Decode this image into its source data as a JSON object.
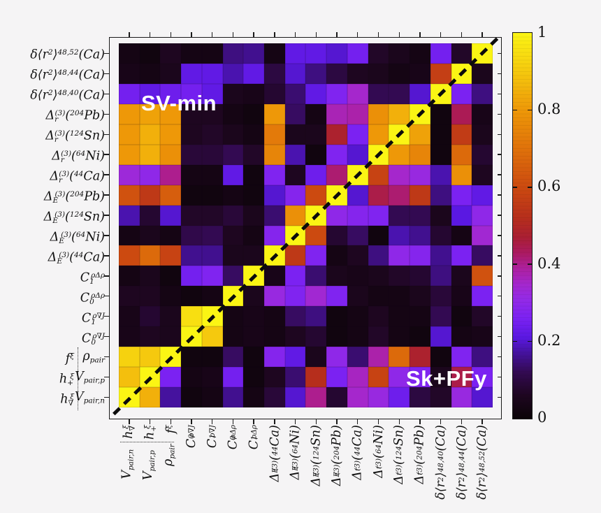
{
  "figure": {
    "background": "#f5f4f5",
    "annotations": {
      "upper_left": "SV-min",
      "lower_right": "Sk+PFy"
    },
    "annotation_color": "#ffffff"
  },
  "chart_data": {
    "type": "heatmap",
    "upper_triangle_label": "SV-min",
    "lower_triangle_label": "Sk+PFy",
    "value_range": [
      0,
      1
    ],
    "diagonal_line": "dashed",
    "row_labels": [
      {
        "label": "δ⟨r^{2}⟩^{48,52}(Ca)"
      },
      {
        "label": "δ⟨r^{2}⟩^{48,44}(Ca)"
      },
      {
        "label": "δ⟨r^{2}⟩^{48,40}(Ca)"
      },
      {
        "label": "Δ_{r}^{(3)}(^{204}Pb)"
      },
      {
        "label": "Δ_{r}^{(3)}(^{124}Sn)"
      },
      {
        "label": "Δ_{r}^{(3)}(^{64}Ni)"
      },
      {
        "label": "Δ_{r}^{(3)}(^{44}Ca)"
      },
      {
        "label": "Δ_{E}^{(3)}(^{204}Pb)"
      },
      {
        "label": "Δ_{E}^{(3)}(^{124}Sn)"
      },
      {
        "label": "Δ_{E}^{(3)}(^{64}Ni)"
      },
      {
        "label": "Δ_{E}^{(3)}(^{44}Ca)"
      },
      {
        "label": "C_{1}^{ρΔρ}"
      },
      {
        "label": "C_{0}^{ρΔρ}"
      },
      {
        "label": "C_{1}^{ρ∇J}"
      },
      {
        "label": "C_{0}^{ρ∇J}"
      },
      {
        "label": "f^{ξ}",
        "label2": "ρ_{pair}"
      },
      {
        "label": "h_{+}^{ξ}",
        "label2": "V_{pair,p}"
      },
      {
        "label": "h_{∇}^{ξ}",
        "label2": "V_{pair,n}"
      }
    ],
    "col_labels": [
      {
        "label": "h_{∇}^{ξ}",
        "label2": "V_{pair,n}"
      },
      {
        "label": "h_{+}^{ξ}",
        "label2": "V_{pair,p}"
      },
      {
        "label": "f^{ξ}",
        "label2": "ρ_{pair}"
      },
      {
        "label": "C_{0}^{ρ∇J}"
      },
      {
        "label": "C_{1}^{ρ∇J}"
      },
      {
        "label": "C_{0}^{ρΔρ}"
      },
      {
        "label": "C_{1}^{ρΔρ}"
      },
      {
        "label": "Δ_{E}^{(3)}(^{44}Ca)"
      },
      {
        "label": "Δ_{E}^{(3)}(^{64}Ni)"
      },
      {
        "label": "Δ_{E}^{(3)}(^{124}Sn)"
      },
      {
        "label": "Δ_{E}^{(3)}(^{204}Pb)"
      },
      {
        "label": "Δ_{r}^{(3)}(^{44}Ca)"
      },
      {
        "label": "Δ_{r}^{(3)}(^{64}Ni)"
      },
      {
        "label": "Δ_{r}^{(3)}(^{124}Sn)"
      },
      {
        "label": "Δ_{r}^{(3)}(^{204}Pb)"
      },
      {
        "label": "δ⟨r^{2}⟩^{48,40}(Ca)"
      },
      {
        "label": "δ⟨r^{2}⟩^{48,44}(Ca)"
      },
      {
        "label": "δ⟨r^{2}⟩^{48,52}(Ca)"
      }
    ],
    "matrix": [
      [
        0.03,
        0.02,
        0.06,
        0.03,
        0.03,
        0.15,
        0.16,
        0.03,
        0.22,
        0.22,
        0.2,
        0.25,
        0.07,
        0.05,
        0.03,
        0.25,
        0.07,
        1.0
      ],
      [
        0.04,
        0.03,
        0.05,
        0.22,
        0.22,
        0.18,
        0.22,
        0.1,
        0.2,
        0.15,
        0.1,
        0.06,
        0.05,
        0.03,
        0.04,
        0.57,
        1.0,
        0.05
      ],
      [
        0.25,
        0.22,
        0.24,
        0.25,
        0.22,
        0.05,
        0.04,
        0.08,
        0.14,
        0.22,
        0.27,
        0.35,
        0.12,
        0.12,
        0.2,
        1.0,
        0.26,
        0.15
      ],
      [
        0.8,
        0.82,
        0.8,
        0.06,
        0.06,
        0.03,
        0.02,
        0.8,
        0.13,
        0.03,
        0.37,
        0.38,
        0.78,
        0.85,
        1.0,
        0.02,
        0.44,
        0.04
      ],
      [
        0.8,
        0.85,
        0.8,
        0.06,
        0.07,
        0.05,
        0.03,
        0.72,
        0.05,
        0.05,
        0.48,
        0.26,
        0.8,
        1.0,
        0.82,
        0.02,
        0.56,
        0.05
      ],
      [
        0.8,
        0.85,
        0.78,
        0.09,
        0.09,
        0.12,
        0.07,
        0.75,
        0.18,
        0.02,
        0.27,
        0.2,
        1.0,
        0.8,
        0.75,
        0.02,
        0.68,
        0.08
      ],
      [
        0.33,
        0.3,
        0.4,
        0.03,
        0.03,
        0.22,
        0.02,
        0.27,
        0.06,
        0.24,
        0.42,
        1.0,
        0.58,
        0.35,
        0.32,
        0.18,
        0.78,
        0.06
      ],
      [
        0.62,
        0.55,
        0.65,
        0.02,
        0.02,
        0.03,
        0.02,
        0.2,
        0.28,
        0.6,
        1.0,
        0.2,
        0.45,
        0.42,
        0.55,
        0.15,
        0.26,
        0.22
      ],
      [
        0.18,
        0.08,
        0.2,
        0.07,
        0.07,
        0.09,
        0.05,
        0.14,
        0.78,
        1.0,
        0.3,
        0.28,
        0.27,
        0.12,
        0.12,
        0.05,
        0.21,
        0.3
      ],
      [
        0.03,
        0.05,
        0.03,
        0.11,
        0.12,
        0.06,
        0.03,
        0.28,
        1.0,
        0.6,
        0.08,
        0.13,
        0.02,
        0.18,
        0.16,
        0.08,
        0.03,
        0.34
      ],
      [
        0.6,
        0.68,
        0.58,
        0.16,
        0.16,
        0.05,
        0.05,
        1.0,
        0.55,
        0.27,
        0.03,
        0.06,
        0.15,
        0.3,
        0.28,
        0.16,
        0.26,
        0.13
      ],
      [
        0.03,
        0.05,
        0.02,
        0.25,
        0.27,
        0.13,
        1.0,
        0.04,
        0.26,
        0.14,
        0.05,
        0.04,
        0.05,
        0.07,
        0.08,
        0.15,
        0.05,
        0.62
      ],
      [
        0.06,
        0.06,
        0.03,
        0.02,
        0.03,
        1.0,
        0.05,
        0.32,
        0.27,
        0.34,
        0.27,
        0.05,
        0.03,
        0.03,
        0.05,
        0.09,
        0.04,
        0.26
      ],
      [
        0.04,
        0.08,
        0.05,
        0.95,
        1.0,
        0.03,
        0.04,
        0.03,
        0.13,
        0.15,
        0.02,
        0.03,
        0.06,
        0.03,
        0.03,
        0.12,
        0.02,
        0.07
      ],
      [
        0.04,
        0.06,
        0.05,
        1.0,
        0.9,
        0.03,
        0.04,
        0.03,
        0.06,
        0.08,
        0.02,
        0.03,
        0.07,
        0.03,
        0.02,
        0.2,
        0.03,
        0.04
      ],
      [
        0.92,
        0.9,
        1.0,
        0.02,
        0.02,
        0.13,
        0.02,
        0.28,
        0.22,
        0.05,
        0.3,
        0.14,
        0.38,
        0.68,
        0.48,
        0.02,
        0.27,
        0.15
      ],
      [
        0.88,
        1.0,
        0.26,
        0.03,
        0.04,
        0.25,
        0.02,
        0.06,
        0.14,
        0.52,
        0.26,
        0.36,
        0.58,
        0.3,
        0.27,
        0.05,
        0.45,
        0.26
      ],
      [
        1.0,
        0.85,
        0.17,
        0.02,
        0.03,
        0.16,
        0.03,
        0.09,
        0.2,
        0.4,
        0.08,
        0.35,
        0.32,
        0.24,
        0.1,
        0.07,
        0.32,
        0.2
      ]
    ],
    "colorbar": {
      "tick_labels": [
        "1",
        "0.8",
        "0.6",
        "0.4",
        "0.2",
        "0"
      ],
      "tick_values": [
        1,
        0.8,
        0.6,
        0.4,
        0.2,
        0
      ],
      "minor_tick_values": [
        0.8,
        0.6,
        0.4,
        0.2
      ]
    },
    "colormap_stops": [
      [
        0.0,
        "#0b0407"
      ],
      [
        0.06,
        "#1e0620"
      ],
      [
        0.12,
        "#330a52"
      ],
      [
        0.17,
        "#45129e"
      ],
      [
        0.21,
        "#5a18e2"
      ],
      [
        0.26,
        "#7b22f2"
      ],
      [
        0.31,
        "#942ae6"
      ],
      [
        0.35,
        "#a527cc"
      ],
      [
        0.39,
        "#ad209e"
      ],
      [
        0.43,
        "#ab1a60"
      ],
      [
        0.47,
        "#aa1f33"
      ],
      [
        0.52,
        "#b62e1c"
      ],
      [
        0.6,
        "#cc4a10"
      ],
      [
        0.7,
        "#e0720a"
      ],
      [
        0.8,
        "#ee9808"
      ],
      [
        0.9,
        "#f5c90e"
      ],
      [
        1.0,
        "#fbf514"
      ]
    ]
  }
}
